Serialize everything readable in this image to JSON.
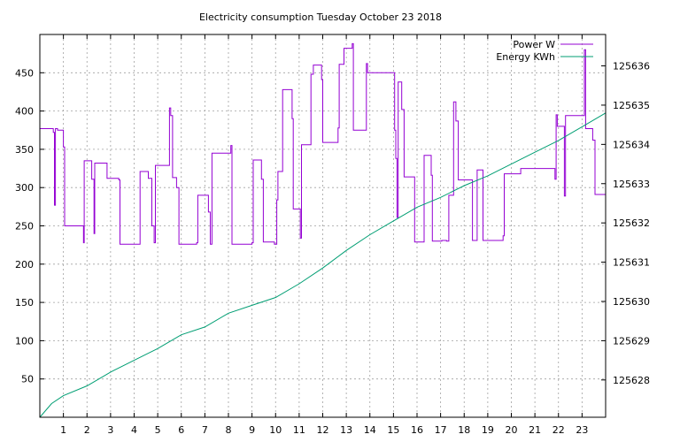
{
  "chart_data": {
    "type": "line",
    "title": "Electricity consumption Tuesday October 23 2018",
    "x_ticks": [
      "1",
      "2",
      "3",
      "4",
      "5",
      "6",
      "7",
      "8",
      "9",
      "10",
      "11",
      "12",
      "13",
      "14",
      "15",
      "16",
      "17",
      "18",
      "19",
      "20",
      "21",
      "22",
      "23"
    ],
    "xlim": [
      0,
      24
    ],
    "y_ticks": [
      50,
      100,
      150,
      200,
      250,
      300,
      350,
      400,
      450
    ],
    "ylim": [
      0,
      500
    ],
    "y2_ticks": [
      125628,
      125629,
      125630,
      125631,
      125632,
      125633,
      125634,
      125635,
      125636
    ],
    "y2lim": [
      125627.05,
      125636.8
    ],
    "grid": true,
    "legend_position": "top-right",
    "series": [
      {
        "name": "Power W",
        "axis": "left",
        "color": "#9400d3",
        "step": true,
        "points": [
          [
            0,
            377
          ],
          [
            0.57,
            372
          ],
          [
            0.62,
            277
          ],
          [
            0.66,
            377
          ],
          [
            0.75,
            375
          ],
          [
            1.0,
            353
          ],
          [
            1.05,
            250
          ],
          [
            1.85,
            228
          ],
          [
            1.88,
            335
          ],
          [
            2.2,
            311
          ],
          [
            2.3,
            240
          ],
          [
            2.33,
            332
          ],
          [
            2.85,
            312
          ],
          [
            3.35,
            310
          ],
          [
            3.4,
            226
          ],
          [
            4.2,
            226
          ],
          [
            4.25,
            321
          ],
          [
            4.6,
            312
          ],
          [
            4.75,
            250
          ],
          [
            4.85,
            228
          ],
          [
            4.9,
            329
          ],
          [
            5.5,
            404
          ],
          [
            5.55,
            394
          ],
          [
            5.63,
            313
          ],
          [
            5.8,
            300
          ],
          [
            5.9,
            226
          ],
          [
            6.65,
            228
          ],
          [
            6.7,
            290
          ],
          [
            7.15,
            268
          ],
          [
            7.23,
            226
          ],
          [
            7.3,
            345
          ],
          [
            8.1,
            355
          ],
          [
            8.15,
            226
          ],
          [
            9.0,
            228
          ],
          [
            9.05,
            336
          ],
          [
            9.4,
            311
          ],
          [
            9.48,
            229
          ],
          [
            9.95,
            226
          ],
          [
            10.05,
            284
          ],
          [
            10.1,
            321
          ],
          [
            10.3,
            428
          ],
          [
            10.7,
            390
          ],
          [
            10.75,
            272
          ],
          [
            11.05,
            234
          ],
          [
            11.1,
            356
          ],
          [
            11.5,
            448
          ],
          [
            11.6,
            460
          ],
          [
            11.95,
            441
          ],
          [
            12.0,
            359
          ],
          [
            12.65,
            378
          ],
          [
            12.7,
            461
          ],
          [
            12.9,
            482
          ],
          [
            13.25,
            488
          ],
          [
            13.3,
            375
          ],
          [
            13.85,
            462
          ],
          [
            13.9,
            450
          ],
          [
            14.1,
            450
          ],
          [
            15.05,
            375
          ],
          [
            15.1,
            338
          ],
          [
            15.15,
            261
          ],
          [
            15.2,
            438
          ],
          [
            15.35,
            402
          ],
          [
            15.45,
            314
          ],
          [
            15.9,
            229
          ],
          [
            16.25,
            229
          ],
          [
            16.3,
            342
          ],
          [
            16.6,
            316
          ],
          [
            16.65,
            230
          ],
          [
            17.05,
            231
          ],
          [
            17.25,
            230
          ],
          [
            17.35,
            290
          ],
          [
            17.55,
            412
          ],
          [
            17.65,
            387
          ],
          [
            17.75,
            310
          ],
          [
            18.3,
            310
          ],
          [
            18.35,
            231
          ],
          [
            18.55,
            323
          ],
          [
            18.8,
            231
          ],
          [
            19.65,
            237
          ],
          [
            19.7,
            318
          ],
          [
            20.35,
            318
          ],
          [
            20.4,
            325
          ],
          [
            21.8,
            325
          ],
          [
            21.85,
            311
          ],
          [
            21.9,
            395
          ],
          [
            21.95,
            380
          ],
          [
            22.25,
            289
          ],
          [
            22.3,
            394
          ],
          [
            23.1,
            480
          ],
          [
            23.15,
            377
          ],
          [
            23.45,
            362
          ],
          [
            23.55,
            291
          ],
          [
            24.0,
            291
          ]
        ]
      },
      {
        "name": "Energy KWh",
        "axis": "right",
        "color": "#009e73",
        "step": false,
        "points": [
          [
            0,
            125627.05
          ],
          [
            0.5,
            125627.4
          ],
          [
            1,
            125627.6
          ],
          [
            2,
            125627.85
          ],
          [
            3,
            125628.2
          ],
          [
            4,
            125628.5
          ],
          [
            5,
            125628.8
          ],
          [
            6,
            125629.15
          ],
          [
            7,
            125629.35
          ],
          [
            8,
            125629.7
          ],
          [
            9,
            125629.9
          ],
          [
            10,
            125630.1
          ],
          [
            11,
            125630.45
          ],
          [
            12,
            125630.85
          ],
          [
            13,
            125631.3
          ],
          [
            14,
            125631.7
          ],
          [
            15,
            125632.05
          ],
          [
            16,
            125632.4
          ],
          [
            17,
            125632.65
          ],
          [
            18,
            125632.95
          ],
          [
            19,
            125633.2
          ],
          [
            20,
            125633.5
          ],
          [
            21,
            125633.8
          ],
          [
            22,
            125634.1
          ],
          [
            23,
            125634.45
          ],
          [
            24,
            125634.8
          ]
        ]
      }
    ]
  }
}
